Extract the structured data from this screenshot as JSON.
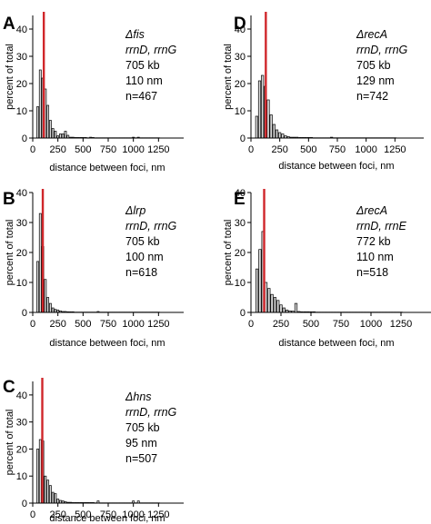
{
  "chart_data": [
    {
      "type": "bar",
      "panel": "A",
      "xlabel": "distance between foci, nm",
      "ylabel": "percent of total",
      "xlim": [
        0,
        1500
      ],
      "ylim": [
        0,
        45
      ],
      "xticks": [
        0,
        250,
        500,
        750,
        1000,
        1250
      ],
      "yticks": [
        0,
        10,
        20,
        30,
        40
      ],
      "bin_width": 25,
      "bin_centers": [
        50,
        75,
        100,
        125,
        150,
        175,
        200,
        225,
        250,
        275,
        300,
        325,
        350,
        375,
        400,
        425,
        450,
        475,
        500,
        525,
        550,
        575,
        600,
        625,
        650,
        675,
        700,
        725,
        750,
        775,
        800,
        825,
        850,
        875,
        900,
        925,
        950,
        975,
        1000,
        1025,
        1050,
        1075,
        1100,
        1125,
        1150,
        1175,
        1200,
        1225,
        1250
      ],
      "values": [
        11.5,
        25,
        22,
        18,
        12,
        6.5,
        3.5,
        2.5,
        0.8,
        1.5,
        1.5,
        2.5,
        1,
        0.3,
        0.3,
        0.2,
        0.2,
        0.2,
        0.2,
        0.2,
        0.1,
        0.3,
        0.2,
        0.1,
        0.1,
        0.1,
        0.1,
        0.1,
        0.1,
        0.1,
        0.1,
        0.1,
        0.1,
        0.1,
        0.1,
        0.1,
        0.1,
        0.1,
        0.3,
        0.1,
        0.3,
        0.1,
        0.1,
        0.1,
        0.1,
        0.1,
        0.1,
        0.1,
        0.1
      ],
      "marker_x": 110,
      "marker_color": "#d0262a",
      "bar_fill": "#d9d9d9",
      "annotation": [
        "Δfis",
        "rrnD, rrnG",
        "705 kb",
        "110 nm",
        "n=467"
      ]
    },
    {
      "type": "bar",
      "panel": "B",
      "xlabel": "distance between foci, nm",
      "ylabel": "percent of total",
      "xlim": [
        0,
        1500
      ],
      "ylim": [
        0,
        40
      ],
      "xticks": [
        0,
        250,
        500,
        750,
        1000,
        1250
      ],
      "yticks": [
        0,
        10,
        20,
        30,
        40
      ],
      "bin_width": 25,
      "bin_centers": [
        50,
        75,
        100,
        125,
        150,
        175,
        200,
        225,
        250,
        275,
        300,
        325,
        350,
        375,
        400,
        425,
        450,
        475,
        500,
        525,
        550,
        575,
        600,
        625,
        650,
        675,
        700,
        725,
        750,
        775,
        800,
        825,
        850,
        875,
        900,
        925,
        950,
        975,
        1000,
        1025,
        1050,
        1075,
        1100,
        1125,
        1150,
        1175,
        1200,
        1225,
        1250
      ],
      "values": [
        17,
        33,
        22,
        11,
        5,
        3,
        1.5,
        1,
        0.8,
        0.5,
        0.3,
        0.3,
        0.2,
        0.2,
        0.2,
        0.1,
        0.1,
        0.1,
        0.1,
        0.1,
        0.1,
        0.1,
        0.1,
        0.1,
        0.3,
        0.1,
        0.1,
        0.1,
        0.1,
        0.1,
        0.1,
        0.1,
        0.1,
        0.1,
        0.1,
        0.1,
        0.1,
        0.1,
        0.1,
        0.1,
        0.1,
        0.1,
        0.1,
        0.1,
        0.1,
        0.1,
        0.1,
        0.1,
        0.1
      ],
      "marker_x": 100,
      "marker_color": "#d0262a",
      "bar_fill": "#d9d9d9",
      "annotation": [
        "Δlrp",
        "rrnD, rrnG",
        "705 kb",
        "100 nm",
        "n=618"
      ]
    },
    {
      "type": "bar",
      "panel": "C",
      "xlabel": "distance between foci, nm",
      "ylabel": "percent of total",
      "xlim": [
        0,
        1500
      ],
      "ylim": [
        0,
        45
      ],
      "xticks": [
        0,
        250,
        500,
        750,
        1000,
        1250
      ],
      "yticks": [
        0,
        10,
        20,
        30,
        40
      ],
      "bin_width": 25,
      "bin_centers": [
        50,
        75,
        100,
        125,
        150,
        175,
        200,
        225,
        250,
        275,
        300,
        325,
        350,
        375,
        400,
        425,
        450,
        475,
        500,
        525,
        550,
        575,
        600,
        625,
        650,
        675,
        700,
        725,
        750,
        775,
        800,
        825,
        850,
        875,
        900,
        925,
        950,
        975,
        1000,
        1025,
        1050,
        1075,
        1100,
        1125,
        1150,
        1175,
        1200,
        1225,
        1250
      ],
      "values": [
        20,
        23.5,
        23,
        10,
        8.5,
        6.5,
        4,
        3.5,
        1.5,
        1,
        0.8,
        0.5,
        0.3,
        0.3,
        0.2,
        0.2,
        0.2,
        0.2,
        0.2,
        0.2,
        0.2,
        0.2,
        0.2,
        0.1,
        0.8,
        0.1,
        0.1,
        0.1,
        0.1,
        0.1,
        0.1,
        0.1,
        0.1,
        0.1,
        0.1,
        0.1,
        0.1,
        0.1,
        0.8,
        0.1,
        0.8,
        0.1,
        0.1,
        0.1,
        0.1,
        0.1,
        0.1,
        0.1,
        0.1
      ],
      "marker_x": 95,
      "marker_color": "#d0262a",
      "bar_fill": "#d9d9d9",
      "annotation": [
        "Δhns",
        "rrnD, rrnG",
        "705 kb",
        "95 nm",
        "n=507"
      ]
    },
    {
      "type": "bar",
      "panel": "D",
      "xlabel": "distance between foci, nm",
      "ylabel": "percent of total",
      "xlim": [
        0,
        1500
      ],
      "ylim": [
        0,
        45
      ],
      "xticks": [
        0,
        250,
        500,
        750,
        1000,
        1250
      ],
      "yticks": [
        0,
        10,
        20,
        30,
        40
      ],
      "bin_width": 25,
      "bin_centers": [
        50,
        75,
        100,
        125,
        150,
        175,
        200,
        225,
        250,
        275,
        300,
        325,
        350,
        375,
        400,
        425,
        450,
        475,
        500,
        525,
        550,
        575,
        600,
        625,
        650,
        675,
        700,
        725,
        750,
        775,
        800,
        825,
        850,
        875,
        900,
        925,
        950,
        975,
        1000,
        1025,
        1050,
        1075,
        1100,
        1125,
        1150,
        1175,
        1200,
        1225,
        1250
      ],
      "values": [
        8,
        21,
        23,
        19,
        14,
        8.5,
        5,
        3,
        2,
        1.5,
        0.8,
        0.5,
        0.3,
        0.3,
        0.3,
        0.2,
        0.2,
        0.2,
        0.2,
        0.2,
        0.1,
        0.1,
        0.1,
        0.1,
        0.1,
        0.1,
        0.3,
        0.1,
        0.1,
        0.1,
        0.1,
        0.1,
        0.1,
        0.1,
        0.1,
        0.1,
        0.1,
        0.1,
        0.1,
        0.1,
        0.1,
        0.1,
        0.1,
        0.1,
        0.1,
        0.1,
        0.1,
        0.1,
        0.1
      ],
      "marker_x": 129,
      "marker_color": "#d0262a",
      "bar_fill": "#d9d9d9",
      "annotation": [
        "ΔrecA",
        "rrnD, rrnG",
        "705 kb",
        "129 nm",
        "n=742"
      ]
    },
    {
      "type": "bar",
      "panel": "E",
      "xlabel": "distance between foci, nm",
      "ylabel": "percent of total",
      "xlim": [
        0,
        1500
      ],
      "ylim": [
        0,
        40
      ],
      "xticks": [
        0,
        250,
        500,
        750,
        1000,
        1250
      ],
      "yticks": [
        0,
        10,
        20,
        30,
        40
      ],
      "bin_width": 25,
      "bin_centers": [
        50,
        75,
        100,
        125,
        150,
        175,
        200,
        225,
        250,
        275,
        300,
        325,
        350,
        375,
        400,
        425,
        450,
        475,
        500,
        525,
        550,
        575,
        600,
        625,
        650,
        675,
        700,
        725,
        750,
        775,
        800,
        825,
        850,
        875,
        900,
        925,
        950,
        975,
        1000,
        1025,
        1050,
        1075,
        1100,
        1125,
        1150,
        1175,
        1200,
        1225,
        1250
      ],
      "values": [
        14.5,
        21,
        27,
        10,
        8,
        6,
        5,
        4,
        2.5,
        1.5,
        0.8,
        0.5,
        0.4,
        3,
        0.3,
        0.2,
        0.2,
        0.2,
        0.2,
        0.2,
        0.1,
        0.1,
        0.1,
        0.1,
        0.1,
        0.1,
        0.1,
        0.1,
        0.1,
        0.1,
        0.1,
        0.1,
        0.1,
        0.1,
        0.1,
        0.1,
        0.1,
        0.1,
        0.1,
        0.1,
        0.1,
        0.1,
        0.1,
        0.1,
        0.1,
        0.1,
        0.1,
        0.1,
        0.1
      ],
      "marker_x": 110,
      "marker_color": "#d0262a",
      "bar_fill": "#d9d9d9",
      "annotation": [
        "ΔrecA",
        "rrnD, rrnE",
        "772 kb",
        "110 nm",
        "n=518"
      ]
    }
  ]
}
